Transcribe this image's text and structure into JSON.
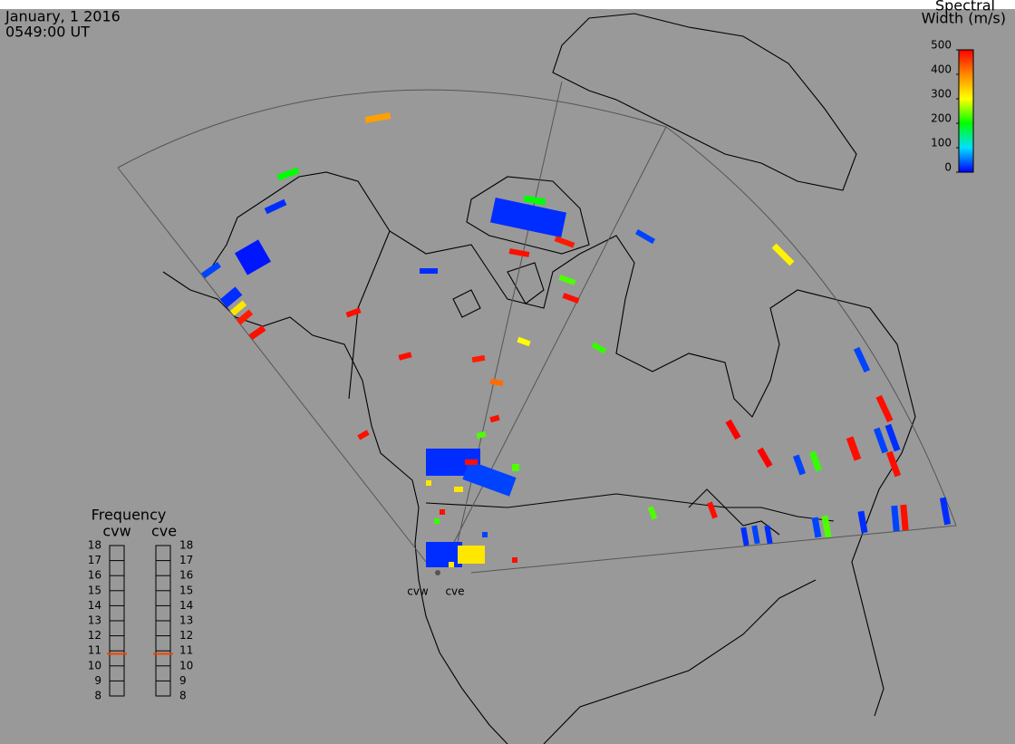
{
  "header": {
    "date": "January, 1 2016",
    "time": "0549:00 UT"
  },
  "colorbar": {
    "title": [
      "Spectral",
      "Width (m/s)"
    ],
    "range": [
      0,
      500
    ],
    "ticks": [
      0,
      100,
      200,
      300,
      400,
      500
    ],
    "colors": [
      "#0000ff",
      "#00e0ff",
      "#00ff00",
      "#ffff00",
      "#ff8800",
      "#ff0000"
    ]
  },
  "frequency": {
    "title": "Frequency",
    "range": [
      8,
      18
    ],
    "ticks": [
      8,
      9,
      10,
      11,
      12,
      13,
      14,
      15,
      16,
      17,
      18
    ],
    "radars": [
      {
        "name": "cvw",
        "value": 10.8
      },
      {
        "name": "cve",
        "value": 10.8
      }
    ]
  },
  "map": {
    "radar_labels": [
      "cvw",
      "cve"
    ],
    "echo_widths": [
      380,
      200,
      20,
      10,
      30,
      20,
      320,
      480,
      490,
      20,
      200,
      490,
      480,
      20,
      230,
      490,
      30,
      310,
      490,
      490,
      480,
      300,
      420,
      220,
      490,
      230,
      490,
      20,
      30,
      490,
      230,
      500,
      500,
      30,
      220,
      30,
      490,
      490,
      30,
      20,
      490,
      230,
      490,
      20,
      30,
      20,
      30,
      230,
      20,
      30,
      490,
      20,
      20,
      320,
      490,
      220,
      30,
      490,
      320,
      320,
      320
    ]
  }
}
